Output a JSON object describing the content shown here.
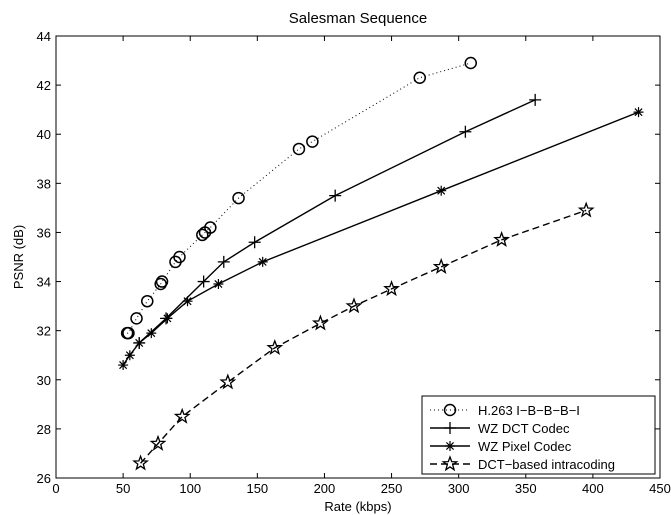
{
  "chart_data": {
    "type": "line",
    "title": "Salesman Sequence",
    "xlabel": "Rate (kbps)",
    "ylabel": "PSNR (dB)",
    "xlim": [
      0,
      450
    ],
    "ylim": [
      26,
      44
    ],
    "xticks": [
      0,
      50,
      100,
      150,
      200,
      250,
      300,
      350,
      400,
      450
    ],
    "yticks": [
      26,
      28,
      30,
      32,
      34,
      36,
      38,
      40,
      42,
      44
    ],
    "grid": false,
    "legend_position": "bottom-right",
    "series": [
      {
        "name": "H.263 I−B−B−B−I",
        "marker": "circle",
        "line": "dotted",
        "x": [
          53,
          54,
          60,
          68,
          78,
          79,
          89,
          92,
          109,
          111,
          115,
          136,
          181,
          191,
          271,
          309
        ],
        "y": [
          31.9,
          31.9,
          32.5,
          33.2,
          33.9,
          34.0,
          34.8,
          35.0,
          35.9,
          36.0,
          36.2,
          37.4,
          39.4,
          39.7,
          42.3,
          42.9
        ]
      },
      {
        "name": "WZ DCT Codec",
        "marker": "plus",
        "line": "solid",
        "x": [
          62,
          82,
          110,
          125,
          148,
          208,
          305,
          357
        ],
        "y": [
          31.5,
          32.5,
          34.0,
          34.8,
          35.6,
          37.5,
          40.1,
          41.4
        ]
      },
      {
        "name": "WZ Pixel Codec",
        "marker": "asterisk",
        "line": "solid",
        "x": [
          50,
          55,
          62,
          71,
          83,
          98,
          121,
          154,
          287,
          434
        ],
        "y": [
          30.6,
          31.0,
          31.5,
          31.9,
          32.5,
          33.2,
          33.9,
          34.8,
          37.7,
          40.9
        ]
      },
      {
        "name": "DCT−based intracoding",
        "marker": "star",
        "line": "dashed",
        "x": [
          63,
          76,
          94,
          128,
          163,
          197,
          222,
          250,
          287,
          332,
          395
        ],
        "y": [
          26.6,
          27.4,
          28.5,
          29.9,
          31.3,
          32.3,
          33.0,
          33.7,
          34.6,
          35.7,
          36.9
        ]
      }
    ]
  },
  "colors": {
    "line": "#000000",
    "background": "#ffffff"
  }
}
